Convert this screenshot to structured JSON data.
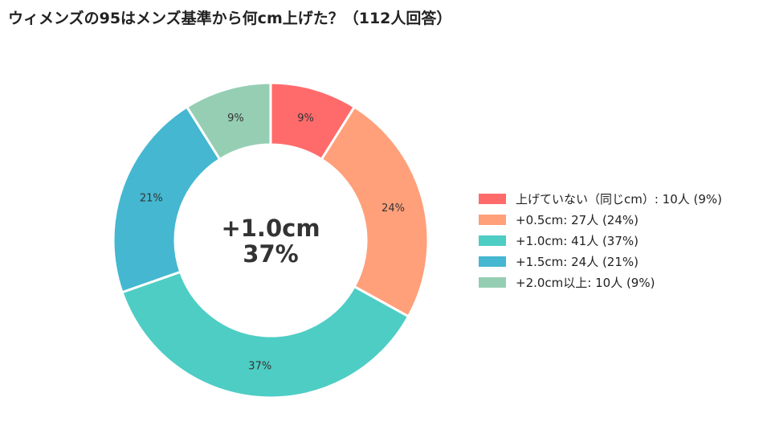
{
  "title": "ウィメンズの95はメンズ基準から何cm上げた？（112人回答）",
  "chart_data": {
    "type": "pie",
    "donut": true,
    "start": "top, clockwise",
    "title": "ウィメンズの95はメンズ基準から何cm上げた？（112人回答）",
    "center_text": [
      "+1.0cm",
      "37%"
    ],
    "legend_position": "right",
    "slices": [
      {
        "label": "上げていない（同じcm）",
        "count": 10,
        "percent": 9,
        "value_label": "9%",
        "legend": "上げていない（同じcm）: 10人 (9%)",
        "color": "#ff6b6b"
      },
      {
        "label": "+0.5cm",
        "count": 27,
        "percent": 24,
        "value_label": "24%",
        "legend": "+0.5cm: 27人 (24%)",
        "color": "#ffa07a"
      },
      {
        "label": "+1.0cm",
        "count": 41,
        "percent": 37,
        "value_label": "37%",
        "legend": "+1.0cm: 41人 (37%)",
        "color": "#4ecdc4"
      },
      {
        "label": "+1.5cm",
        "count": 24,
        "percent": 21,
        "value_label": "21%",
        "legend": "+1.5cm: 24人 (21%)",
        "color": "#45b7d1"
      },
      {
        "label": "+2.0cm以上",
        "count": 10,
        "percent": 9,
        "value_label": "9%",
        "legend": "+2.0cm以上: 10人 (9%)",
        "color": "#96ceb4"
      }
    ]
  }
}
